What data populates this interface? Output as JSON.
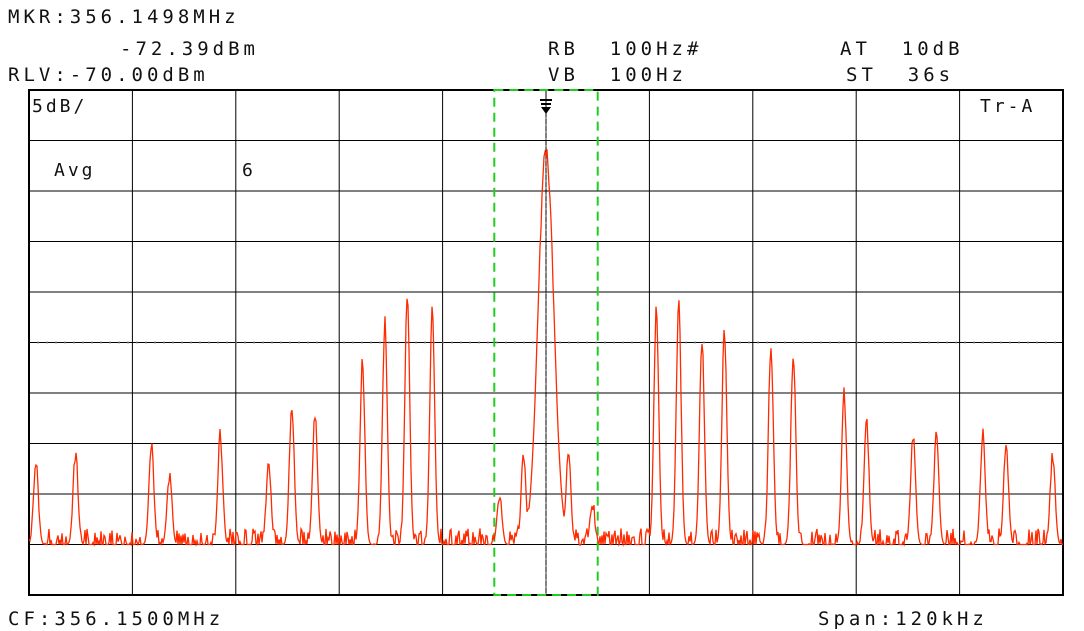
{
  "header": {
    "marker_freq": "MKR:356.1498MHz",
    "marker_level": "-72.39dBm",
    "ref_level": "RLV:-70.00dBm",
    "rbw": "RB  100Hz#",
    "vbw": "VB  100Hz",
    "attenuation": "AT  10dB",
    "sweep_time": "ST  36s"
  },
  "plot": {
    "scale": "5dB/",
    "trace": "Tr-A",
    "avg_label": "Avg",
    "avg_count": "6"
  },
  "footer": {
    "center_freq": "CF:356.1500MHz",
    "span": "Span:120kHz"
  },
  "colors": {
    "trace": "#ff2a00",
    "grid": "#000000",
    "marker_box": "#22cc22"
  },
  "chart_data": {
    "type": "line",
    "x_unit": "kHz offset from CF",
    "y_unit": "dB relative to top graticule",
    "xlim": [
      -60,
      60
    ],
    "ylim": [
      -45,
      5
    ],
    "noise_floor": -40,
    "carrier": {
      "x": 0,
      "y": -1
    },
    "sidebands": [
      {
        "x": -59.2,
        "y": -32
      },
      {
        "x": -54.6,
        "y": -31
      },
      {
        "x": -45.8,
        "y": -30
      },
      {
        "x": -43.7,
        "y": -33
      },
      {
        "x": -37.8,
        "y": -29
      },
      {
        "x": -32.2,
        "y": -32
      },
      {
        "x": -29.5,
        "y": -26
      },
      {
        "x": -26.8,
        "y": -27
      },
      {
        "x": -21.3,
        "y": -22
      },
      {
        "x": -18.7,
        "y": -18
      },
      {
        "x": -16.1,
        "y": -15
      },
      {
        "x": -13.2,
        "y": -17
      },
      {
        "x": -5.4,
        "y": -35
      },
      {
        "x": -2.6,
        "y": -31
      },
      {
        "x": 2.6,
        "y": -31
      },
      {
        "x": 5.4,
        "y": -36
      },
      {
        "x": 12.8,
        "y": -17
      },
      {
        "x": 15.4,
        "y": -16
      },
      {
        "x": 18.1,
        "y": -20
      },
      {
        "x": 20.7,
        "y": -19
      },
      {
        "x": 26.1,
        "y": -20
      },
      {
        "x": 28.7,
        "y": -21
      },
      {
        "x": 34.6,
        "y": -25
      },
      {
        "x": 37.2,
        "y": -28
      },
      {
        "x": 42.6,
        "y": -29
      },
      {
        "x": 45.3,
        "y": -29
      },
      {
        "x": 50.7,
        "y": -29
      },
      {
        "x": 53.4,
        "y": -30
      },
      {
        "x": 58.8,
        "y": -31
      }
    ],
    "dotted_ref_level": -20,
    "marker_window": [
      -6,
      6
    ],
    "grid": true
  }
}
